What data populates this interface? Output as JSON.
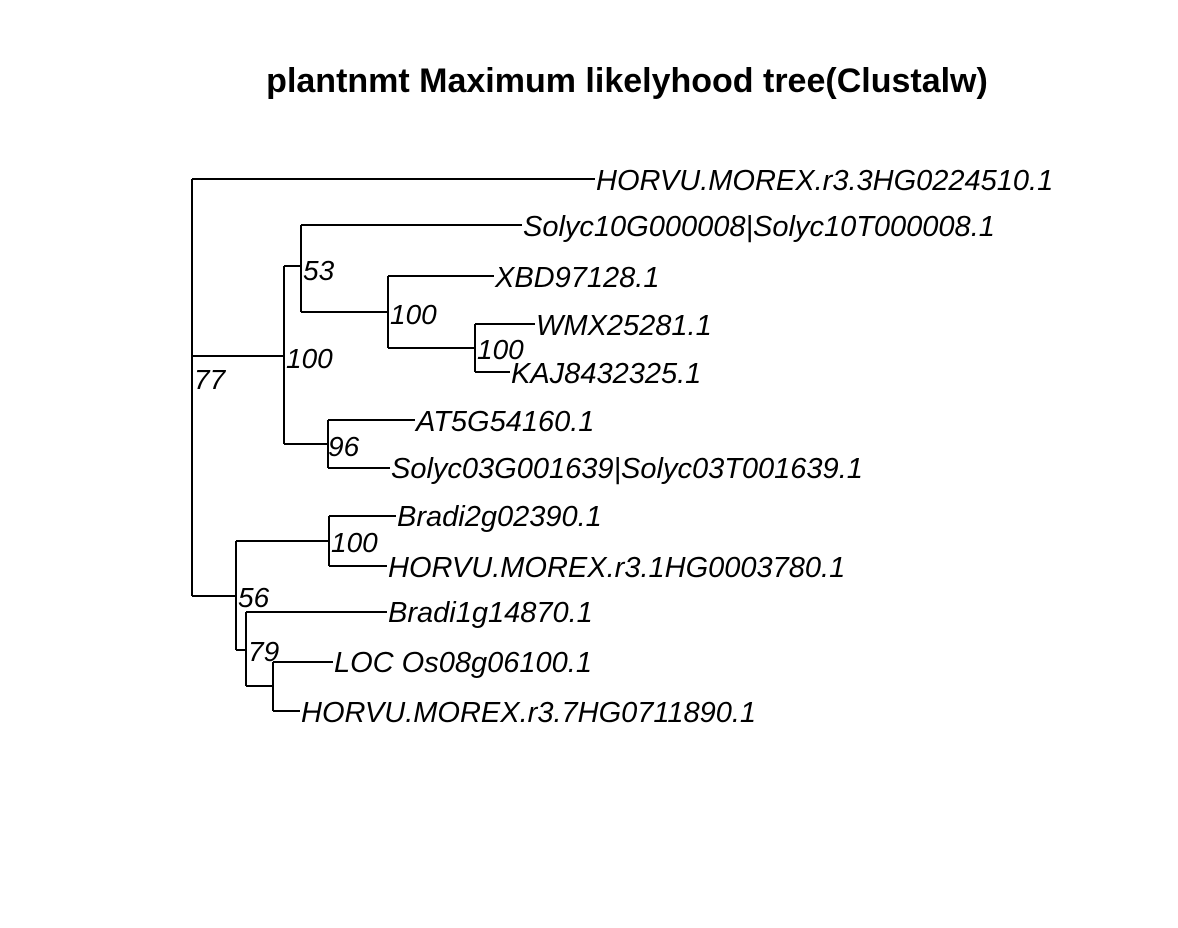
{
  "title": "plantnmt Maximum likelyhood tree(Clustalw)",
  "tips": [
    "HORVU.MOREX.r3.3HG0224510.1",
    "Solyc10G000008|Solyc10T000008.1",
    "XBD97128.1",
    "WMX25281.1",
    "KAJ8432325.1",
    "AT5G54160.1",
    "Solyc03G001639|Solyc03T001639.1",
    "Bradi2g02390.1",
    "HORVU.MOREX.r3.1HG0003780.1",
    "Bradi1g14870.1",
    "LOC Os08g06100.1",
    "HORVU.MOREX.r3.7HG0711890.1"
  ],
  "support": [
    "77",
    "100",
    "53",
    "100",
    "100",
    "96",
    "56",
    "100",
    "79"
  ]
}
